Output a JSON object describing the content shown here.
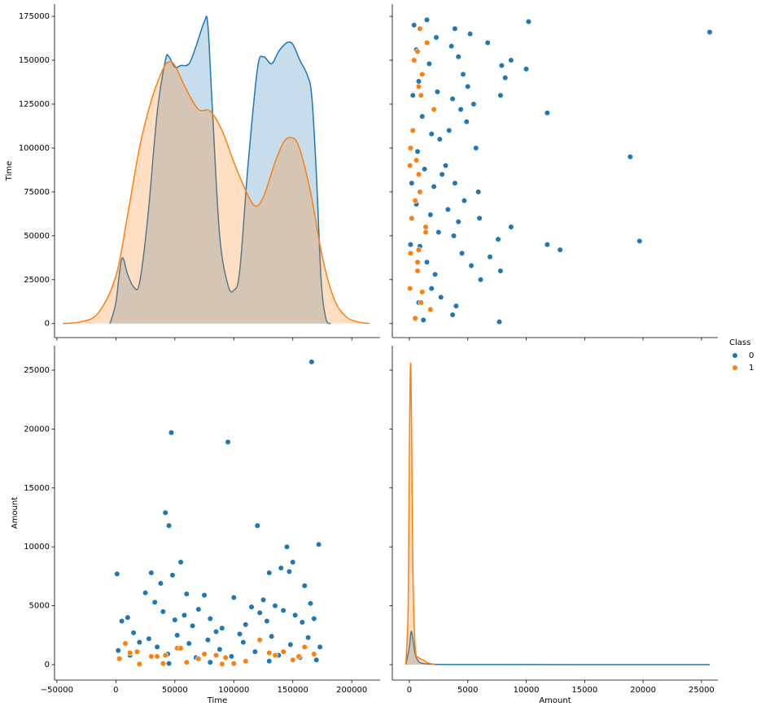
{
  "chart_data": [
    {
      "type": "kde",
      "ylabel": "Time",
      "legend_title": "Class",
      "xlim": [
        -52000,
        224000
      ],
      "ylim": [
        -8000,
        182000
      ],
      "xticks": [
        {
          "value": -50000,
          "label": "−50000"
        },
        0,
        50000,
        100000,
        150000,
        200000
      ],
      "yticks": [
        0,
        25000,
        50000,
        75000,
        100000,
        125000,
        150000,
        175000
      ],
      "xtick_labels": false,
      "ytick_labels": true,
      "series": [
        {
          "name": "0",
          "color": "#1f77b4",
          "x": [
            -5000,
            0,
            5000,
            10000,
            15000,
            20000,
            27000,
            35000,
            42000,
            45000,
            50000,
            55000,
            62000,
            68000,
            75000,
            78000,
            82000,
            88000,
            95000,
            100000,
            105000,
            112000,
            120000,
            125000,
            132000,
            138000,
            145000,
            150000,
            156000,
            162000,
            166000,
            170000,
            174000,
            178000,
            182000
          ],
          "values": [
            0,
            12000,
            37000,
            28000,
            21000,
            23000,
            60000,
            120000,
            150000,
            152000,
            146000,
            147000,
            148000,
            158000,
            172000,
            170000,
            120000,
            50000,
            22000,
            19000,
            30000,
            90000,
            145000,
            152000,
            148000,
            155000,
            160000,
            159000,
            150000,
            142000,
            130000,
            85000,
            25000,
            3000,
            0
          ]
        },
        {
          "name": "1",
          "color": "#ff7f0e",
          "x": [
            -45000,
            -30000,
            -15000,
            0,
            10000,
            20000,
            30000,
            40000,
            45000,
            50000,
            60000,
            70000,
            80000,
            90000,
            100000,
            110000,
            118000,
            125000,
            135000,
            142000,
            148000,
            155000,
            165000,
            175000,
            185000,
            195000,
            205000,
            215000
          ],
          "values": [
            0,
            1000,
            6000,
            27000,
            62000,
            100000,
            127000,
            145000,
            149000,
            147000,
            133000,
            122000,
            121000,
            110000,
            92000,
            76000,
            67000,
            72000,
            92000,
            103000,
            106000,
            101000,
            75000,
            38000,
            14000,
            4000,
            1000,
            0
          ]
        }
      ]
    },
    {
      "type": "scatter",
      "xlim": [
        -1460,
        26400
      ],
      "ylim": [
        -8000,
        182000
      ],
      "xticks": [
        0,
        5000,
        10000,
        15000,
        20000,
        25000
      ],
      "yticks": [
        0,
        25000,
        50000,
        75000,
        100000,
        125000,
        150000,
        175000
      ],
      "xtick_labels": false,
      "ytick_labels": false,
      "series": [
        {
          "name": "0",
          "color": "#1f77b4",
          "x": [
            7700,
            12900,
            11800,
            19700,
            18900,
            11800,
            10000,
            25700,
            10200,
            8700,
            7800,
            6900,
            7600,
            8700,
            8200,
            7900,
            7800,
            6100,
            6000,
            5900,
            5700,
            5500,
            6700,
            5200,
            3700,
            4000,
            2700,
            1900,
            5300,
            4500,
            3800,
            4200,
            3300,
            4700,
            3900,
            2800,
            3100,
            2600,
            3400,
            4900,
            4400,
            3700,
            5000,
            4600,
            4200,
            3600,
            3900,
            1500,
            1200,
            800,
            2200,
            1500,
            900,
            2500,
            1800,
            600,
            2100,
            1300,
            700,
            1900,
            1100,
            2400,
            800,
            1700,
            600,
            2300,
            400,
            200,
            100,
            300
          ],
          "values": [
            1000,
            42000,
            45000,
            47000,
            95000,
            120000,
            145000,
            166000,
            172000,
            55000,
            30000,
            38000,
            48000,
            150000,
            140000,
            147000,
            130000,
            25000,
            60000,
            75000,
            100000,
            125000,
            160000,
            165000,
            5000,
            10000,
            15000,
            20000,
            33000,
            40000,
            50000,
            58000,
            65000,
            70000,
            80000,
            85000,
            90000,
            105000,
            110000,
            115000,
            122000,
            128000,
            135000,
            142000,
            152000,
            158000,
            168000,
            173000,
            2000,
            12000,
            28000,
            35000,
            44000,
            52000,
            62000,
            68000,
            78000,
            88000,
            98000,
            108000,
            118000,
            132000,
            138000,
            148000,
            156000,
            163000,
            170000,
            80000,
            45000,
            130000
          ]
        },
        {
          "name": "1",
          "color": "#ff7f0e",
          "x": [
            500,
            1800,
            1000,
            1100,
            700,
            700,
            100,
            800,
            1400,
            1400,
            200,
            500,
            900,
            800,
            600,
            100,
            300,
            2100,
            1000,
            800,
            1100,
            400,
            700,
            1500,
            900,
            50,
            50
          ],
          "values": [
            3000,
            8000,
            12000,
            18000,
            30000,
            35000,
            40000,
            42000,
            52000,
            55000,
            60000,
            70000,
            75000,
            85000,
            93000,
            100000,
            110000,
            122000,
            130000,
            135000,
            142000,
            150000,
            155000,
            160000,
            168000,
            20000,
            90000
          ]
        }
      ]
    },
    {
      "type": "scatter",
      "xlabel": "Time",
      "ylabel": "Amount",
      "xlim": [
        -52000,
        224000
      ],
      "ylim": [
        -1310,
        27070
      ],
      "xticks": [
        {
          "value": -50000,
          "label": "−50000"
        },
        0,
        50000,
        100000,
        150000,
        200000
      ],
      "yticks": [
        0,
        5000,
        10000,
        15000,
        20000,
        25000
      ],
      "xtick_labels": true,
      "ytick_labels": true,
      "series": [
        {
          "name": "0",
          "color": "#1f77b4",
          "x": [
            1000,
            42000,
            45000,
            47000,
            95000,
            120000,
            145000,
            166000,
            172000,
            55000,
            30000,
            38000,
            48000,
            150000,
            140000,
            147000,
            130000,
            25000,
            60000,
            75000,
            100000,
            125000,
            160000,
            165000,
            5000,
            10000,
            15000,
            20000,
            33000,
            40000,
            50000,
            58000,
            65000,
            70000,
            80000,
            85000,
            90000,
            105000,
            110000,
            115000,
            122000,
            128000,
            135000,
            142000,
            152000,
            158000,
            168000,
            173000,
            2000,
            12000,
            28000,
            35000,
            44000,
            52000,
            62000,
            68000,
            78000,
            88000,
            98000,
            108000,
            118000,
            132000,
            138000,
            148000,
            156000,
            163000,
            170000,
            80000,
            45000,
            130000
          ],
          "values": [
            7700,
            12900,
            11800,
            19700,
            18900,
            11800,
            10000,
            25700,
            10200,
            8700,
            7800,
            6900,
            7600,
            8700,
            8200,
            7900,
            7800,
            6100,
            6000,
            5900,
            5700,
            5500,
            6700,
            5200,
            3700,
            4000,
            2700,
            1900,
            5300,
            4500,
            3800,
            4200,
            3300,
            4700,
            3900,
            2800,
            3100,
            2600,
            3400,
            4900,
            4400,
            3700,
            5000,
            4600,
            4200,
            3600,
            3900,
            1500,
            1200,
            800,
            2200,
            1500,
            900,
            2500,
            1800,
            600,
            2100,
            1300,
            700,
            1900,
            1100,
            2400,
            800,
            1700,
            600,
            2300,
            400,
            200,
            100,
            300
          ]
        },
        {
          "name": "1",
          "color": "#ff7f0e",
          "x": [
            3000,
            8000,
            12000,
            18000,
            30000,
            35000,
            40000,
            42000,
            52000,
            55000,
            60000,
            70000,
            75000,
            85000,
            93000,
            100000,
            110000,
            122000,
            130000,
            135000,
            142000,
            150000,
            155000,
            160000,
            168000,
            20000,
            90000
          ],
          "values": [
            500,
            1800,
            1000,
            1100,
            700,
            700,
            100,
            800,
            1400,
            1400,
            200,
            500,
            900,
            800,
            600,
            100,
            300,
            2100,
            1000,
            800,
            1100,
            400,
            700,
            1500,
            900,
            50,
            50
          ]
        }
      ]
    },
    {
      "type": "kde",
      "xlabel": "Amount",
      "xlim": [
        -1460,
        26400
      ],
      "ylim": [
        -1310,
        27070
      ],
      "xticks": [
        0,
        5000,
        10000,
        15000,
        20000,
        25000
      ],
      "yticks": [
        0,
        5000,
        10000,
        15000,
        20000,
        25000
      ],
      "xtick_labels": true,
      "ytick_labels": false,
      "series": [
        {
          "name": "0",
          "color": "#1f77b4",
          "x": [
            -300,
            0,
            150,
            300,
            500,
            800,
            1200,
            2000,
            5000,
            25700
          ],
          "values": [
            0,
            1500,
            2800,
            2200,
            900,
            250,
            100,
            40,
            10,
            0
          ]
        },
        {
          "name": "1",
          "color": "#ff7f0e",
          "x": [
            -300,
            -100,
            0,
            100,
            200,
            300,
            500,
            800,
            1200,
            1600,
            2200
          ],
          "values": [
            0,
            5000,
            18000,
            25600,
            19000,
            8000,
            1500,
            600,
            400,
            150,
            0
          ]
        }
      ]
    }
  ]
}
